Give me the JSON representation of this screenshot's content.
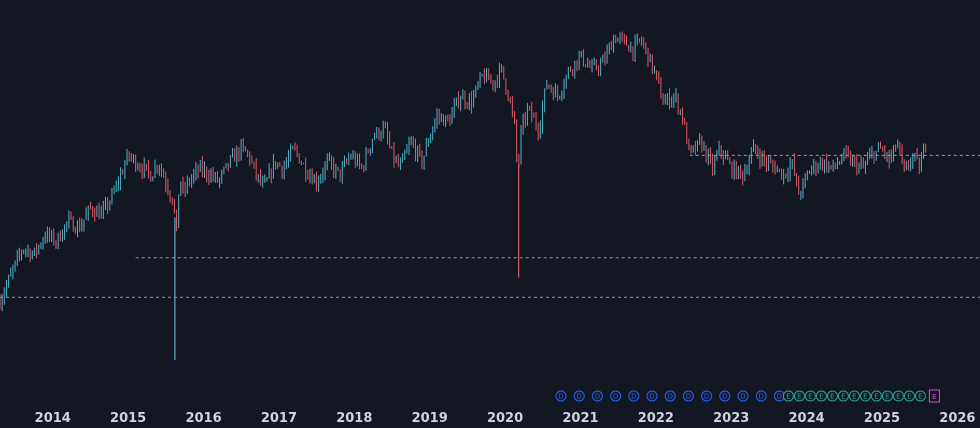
{
  "chart_data": {
    "type": "line",
    "title": "",
    "xlabel": "",
    "ylabel": "",
    "grid": false,
    "colors": {
      "background": "#131722",
      "up": "#4fb3c7",
      "down": "#e05a65",
      "axis_text": "#d1d4dc",
      "level_line": "#9598a1",
      "dividend_badge": "#2962ff",
      "earnings_badge": "#26a69a",
      "upcoming_earnings_badge": "#e040fb"
    },
    "x_ticks": [
      "2014",
      "2015",
      "2016",
      "2017",
      "2018",
      "2019",
      "2020",
      "2021",
      "2022",
      "2023",
      "2024",
      "2025",
      "2026"
    ],
    "xlim": [
      2013.3,
      2026.3
    ],
    "ylim": [
      0,
      100
    ],
    "series": [
      {
        "x": [
          2013.3,
          2013.45,
          2013.6,
          2013.75,
          2013.9,
          2014.05,
          2014.2,
          2014.35,
          2014.5,
          2014.65,
          2014.8,
          2014.9,
          2015.0,
          2015.1,
          2015.2,
          2015.3,
          2015.4,
          2015.5,
          2015.6,
          2015.65,
          2015.68,
          2015.72,
          2015.8,
          2015.95,
          2016.1,
          2016.2,
          2016.35,
          2016.5,
          2016.6,
          2016.7,
          2016.8,
          2016.95,
          2017.05,
          2017.2,
          2017.35,
          2017.5,
          2017.65,
          2017.8,
          2017.95,
          2018.1,
          2018.25,
          2018.4,
          2018.5,
          2018.6,
          2018.75,
          2018.9,
          2019.0,
          2019.1,
          2019.25,
          2019.4,
          2019.55,
          2019.7,
          2019.85,
          2019.95,
          2020.05,
          2020.13,
          2020.17,
          2020.2,
          2020.3,
          2020.45,
          2020.55,
          2020.7,
          2020.85,
          2021.0,
          2021.15,
          2021.3,
          2021.45,
          2021.6,
          2021.7,
          2021.8,
          2021.9,
          2022.0,
          2022.1,
          2022.25,
          2022.35,
          2022.45,
          2022.6,
          2022.75,
          2022.85,
          2023.0,
          2023.15,
          2023.3,
          2023.45,
          2023.6,
          2023.7,
          2023.8,
          2023.9,
          2024.05,
          2024.2,
          2024.35,
          2024.5,
          2024.6,
          2024.75,
          2024.85,
          2025.0,
          2025.1,
          2025.2,
          2025.3,
          2025.4,
          2025.5,
          2025.58
        ],
        "y": [
          18,
          26,
          34,
          32,
          38,
          36,
          42,
          40,
          46,
          44,
          50,
          56,
          62,
          60,
          58,
          56,
          60,
          54,
          48,
          36,
          58,
          50,
          54,
          58,
          56,
          54,
          60,
          64,
          62,
          56,
          52,
          60,
          58,
          64,
          58,
          54,
          60,
          56,
          62,
          58,
          68,
          70,
          62,
          58,
          66,
          60,
          68,
          74,
          72,
          80,
          78,
          86,
          84,
          88,
          80,
          70,
          55,
          68,
          76,
          70,
          84,
          80,
          88,
          92,
          88,
          90,
          98,
          96,
          94,
          97,
          92,
          86,
          78,
          80,
          74,
          62,
          66,
          58,
          64,
          58,
          56,
          64,
          60,
          58,
          56,
          60,
          50,
          58,
          60,
          58,
          62,
          60,
          58,
          62,
          64,
          60,
          66,
          56,
          62,
          58,
          66
        ]
      }
    ],
    "spikes": [
      {
        "x": 2015.62,
        "low": 0
      },
      {
        "x": 2020.18,
        "low": 25
      }
    ],
    "levels": [
      {
        "y": 19,
        "from": 2013.3
      },
      {
        "y": 31,
        "from": 2015.1
      },
      {
        "y": 62,
        "from": 2022.45
      }
    ],
    "events": {
      "dividends": [
        "D",
        "D",
        "D",
        "D",
        "D",
        "D",
        "D",
        "D",
        "D",
        "D",
        "D",
        "D",
        "D"
      ],
      "earnings": [
        "E",
        "E",
        "E",
        "E",
        "E",
        "E",
        "E",
        "E",
        "E",
        "E",
        "E",
        "E",
        "E"
      ],
      "upcoming": "E"
    }
  }
}
